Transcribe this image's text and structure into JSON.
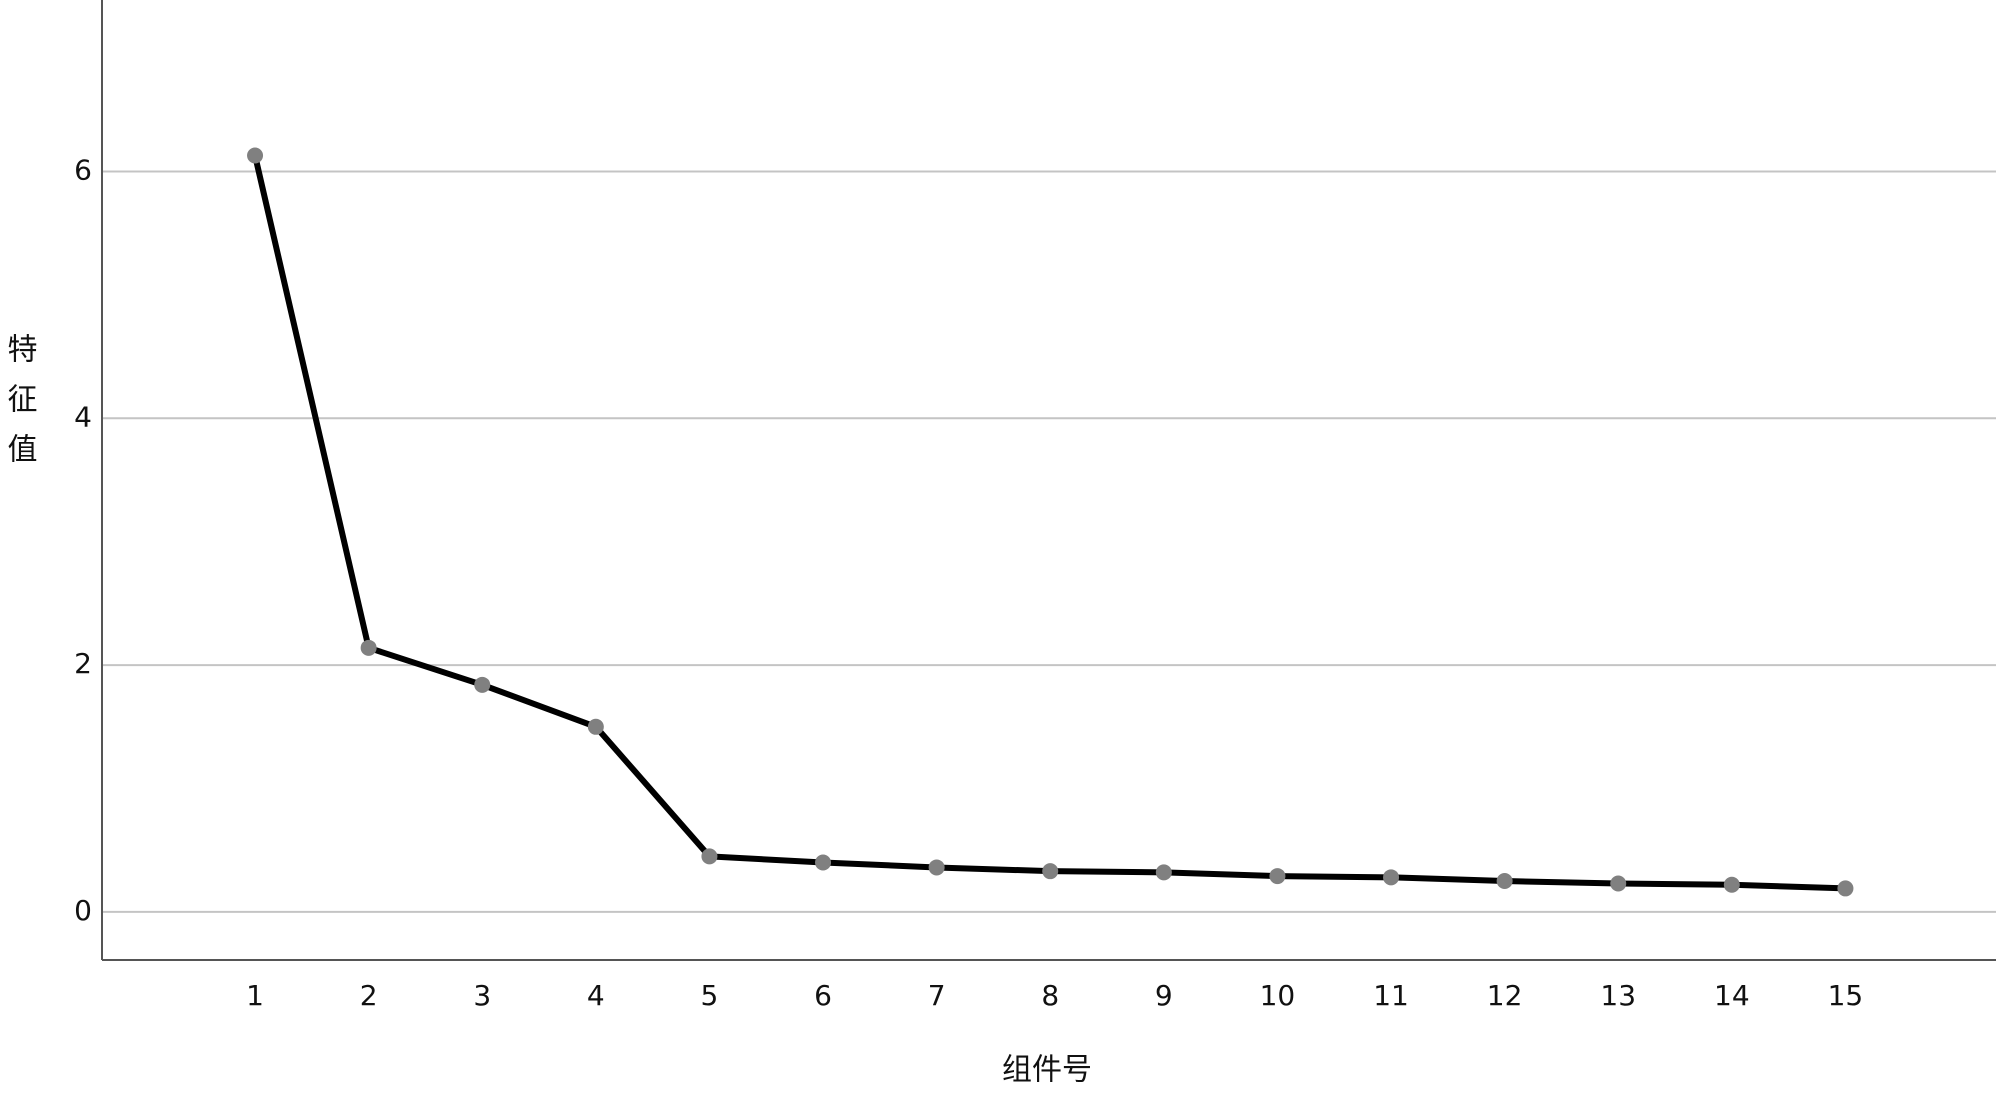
{
  "chart_data": {
    "type": "line",
    "x_label": "组件号",
    "y_label": "特征值",
    "categories": [
      "1",
      "2",
      "3",
      "4",
      "5",
      "6",
      "7",
      "8",
      "9",
      "10",
      "11",
      "12",
      "13",
      "14",
      "15"
    ],
    "values": [
      6.13,
      2.14,
      1.84,
      1.5,
      0.45,
      0.4,
      0.36,
      0.33,
      0.32,
      0.29,
      0.28,
      0.25,
      0.23,
      0.22,
      0.19
    ],
    "color": "#000000",
    "marker_color": "#808080",
    "ylim": [
      -0.39,
      7.39
    ],
    "yticks": [
      0,
      2,
      4,
      6
    ],
    "grid": true
  }
}
